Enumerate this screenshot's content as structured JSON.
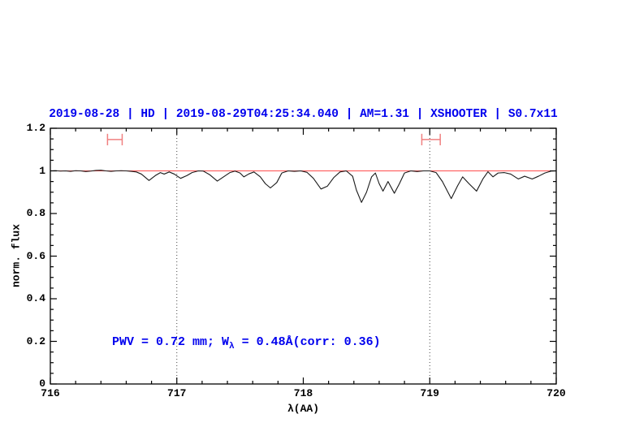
{
  "header": {
    "title": "2019-08-28 | HD | 2019-08-29T04:25:34.040 | AM=1.31 | XSHOOTER | S0.7x11"
  },
  "annotation": {
    "prefix": "PWV = 0.72 mm; W",
    "subscript": "λ",
    "suffix": " = 0.48Å(corr: 0.36)"
  },
  "colors": {
    "title": "#0000ee",
    "annotation": "#0000ee",
    "axis": "#000000",
    "spectrum": "#1a1a1a",
    "continuum": "#ff4d4d",
    "marker": "#f08080",
    "dotted": "#444444"
  },
  "chart_data": {
    "type": "line",
    "title": "2019-08-28 | HD | 2019-08-29T04:25:34.040 | AM=1.31 | XSHOOTER | S0.7x11",
    "xlabel": "λ(AA)",
    "ylabel": "norm. flux",
    "xlim": [
      716,
      720
    ],
    "ylim": [
      0,
      1.2
    ],
    "grid": false,
    "x_major_ticks": [
      716,
      717,
      718,
      719,
      720
    ],
    "x_tick_labels": [
      "716",
      "717",
      "718",
      "719",
      "720"
    ],
    "x_minor_step": 0.2,
    "y_major_ticks": [
      0,
      0.2,
      0.4,
      0.6,
      0.8,
      1,
      1.2
    ],
    "y_tick_labels": [
      "0",
      "0.2",
      "0.4",
      "0.6",
      "0.8",
      "1",
      "1.2"
    ],
    "y_minor_step": 0.05,
    "dotted_vlines": [
      717,
      719
    ],
    "continuum_line_y": 1.0,
    "range_markers": [
      {
        "x_center": 716.51,
        "x_half_width": 0.058,
        "y": 1.147,
        "cap_half_height": 0.027
      },
      {
        "x_center": 719.01,
        "x_half_width": 0.073,
        "y": 1.147,
        "cap_half_height": 0.027
      }
    ],
    "series": [
      {
        "name": "spectrum",
        "points": [
          [
            716.0,
            1.0
          ],
          [
            716.04,
            1.001
          ],
          [
            716.08,
            0.999
          ],
          [
            716.12,
            1.0
          ],
          [
            716.16,
            0.998
          ],
          [
            716.2,
            1.001
          ],
          [
            716.24,
            1.0
          ],
          [
            716.28,
            0.997
          ],
          [
            716.32,
            0.999
          ],
          [
            716.36,
            1.002
          ],
          [
            716.4,
            1.003
          ],
          [
            716.44,
            1.0
          ],
          [
            716.48,
            0.998
          ],
          [
            716.52,
            1.0
          ],
          [
            716.56,
            1.001
          ],
          [
            716.6,
            1.0
          ],
          [
            716.64,
            0.998
          ],
          [
            716.68,
            0.995
          ],
          [
            716.72,
            0.985
          ],
          [
            716.78,
            0.955
          ],
          [
            716.83,
            0.978
          ],
          [
            716.87,
            0.992
          ],
          [
            716.9,
            0.985
          ],
          [
            716.94,
            0.995
          ],
          [
            716.98,
            0.985
          ],
          [
            717.03,
            0.965
          ],
          [
            717.08,
            0.978
          ],
          [
            717.12,
            0.992
          ],
          [
            717.17,
            1.0
          ],
          [
            717.21,
            0.999
          ],
          [
            717.26,
            0.982
          ],
          [
            717.32,
            0.952
          ],
          [
            717.37,
            0.972
          ],
          [
            717.42,
            0.992
          ],
          [
            717.46,
            0.999
          ],
          [
            717.5,
            0.99
          ],
          [
            717.53,
            0.972
          ],
          [
            717.57,
            0.986
          ],
          [
            717.61,
            0.995
          ],
          [
            717.66,
            0.972
          ],
          [
            717.7,
            0.94
          ],
          [
            717.74,
            0.92
          ],
          [
            717.79,
            0.945
          ],
          [
            717.83,
            0.99
          ],
          [
            717.88,
            1.0
          ],
          [
            717.93,
            0.998
          ],
          [
            717.98,
            1.0
          ],
          [
            718.03,
            0.993
          ],
          [
            718.08,
            0.965
          ],
          [
            718.14,
            0.915
          ],
          [
            718.19,
            0.928
          ],
          [
            718.24,
            0.968
          ],
          [
            718.29,
            0.995
          ],
          [
            718.34,
            1.0
          ],
          [
            718.39,
            0.975
          ],
          [
            718.42,
            0.91
          ],
          [
            718.46,
            0.852
          ],
          [
            718.5,
            0.9
          ],
          [
            718.54,
            0.972
          ],
          [
            718.57,
            0.99
          ],
          [
            718.6,
            0.94
          ],
          [
            718.63,
            0.905
          ],
          [
            718.67,
            0.95
          ],
          [
            718.72,
            0.895
          ],
          [
            718.76,
            0.94
          ],
          [
            718.8,
            0.99
          ],
          [
            718.85,
            1.0
          ],
          [
            718.9,
            0.997
          ],
          [
            718.95,
            1.0
          ],
          [
            719.0,
            1.0
          ],
          [
            719.05,
            0.992
          ],
          [
            719.1,
            0.95
          ],
          [
            719.17,
            0.87
          ],
          [
            719.22,
            0.93
          ],
          [
            719.26,
            0.972
          ],
          [
            719.31,
            0.94
          ],
          [
            719.37,
            0.905
          ],
          [
            719.42,
            0.962
          ],
          [
            719.46,
            0.996
          ],
          [
            719.5,
            0.972
          ],
          [
            719.54,
            0.99
          ],
          [
            719.59,
            0.992
          ],
          [
            719.64,
            0.985
          ],
          [
            719.7,
            0.962
          ],
          [
            719.75,
            0.975
          ],
          [
            719.81,
            0.962
          ],
          [
            719.86,
            0.975
          ],
          [
            719.91,
            0.99
          ],
          [
            719.96,
            0.999
          ],
          [
            720.0,
            1.0
          ]
        ]
      }
    ]
  }
}
